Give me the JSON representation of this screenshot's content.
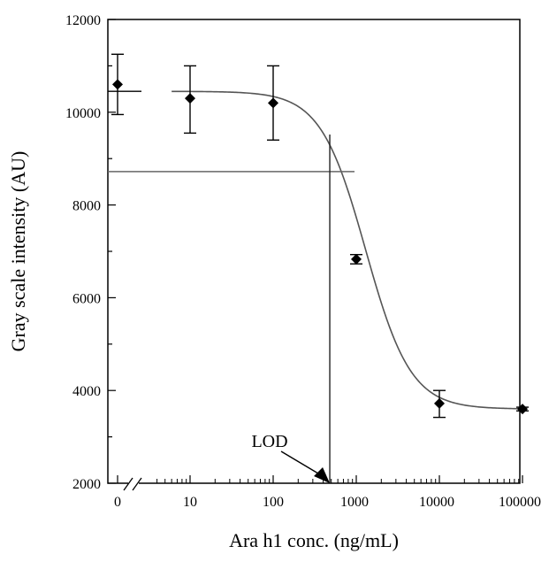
{
  "chart_data": {
    "type": "scatter",
    "title": "",
    "xlabel": "Ara h1 conc. (ng/mL)",
    "ylabel": "Gray scale intensity (AU)",
    "x_scale": "log",
    "x_axis_break": true,
    "x_tick_labels": [
      "0",
      "10",
      "100",
      "1000",
      "10000",
      "100000"
    ],
    "y_ticks": [
      2000,
      4000,
      6000,
      8000,
      10000,
      12000
    ],
    "ylim": [
      2000,
      12000
    ],
    "grid": false,
    "legend": "none",
    "points": [
      {
        "x": 0,
        "y": 10600,
        "err_low": 9950,
        "err_high": 11250
      },
      {
        "x": 10,
        "y": 10300,
        "err_low": 9550,
        "err_high": 11000
      },
      {
        "x": 100,
        "y": 10200,
        "err_low": 9400,
        "err_high": 11000
      },
      {
        "x": 1000,
        "y": 6830,
        "err_low": 6730,
        "err_high": 6930
      },
      {
        "x": 10000,
        "y": 3720,
        "err_low": 3420,
        "err_high": 4000
      },
      {
        "x": 100000,
        "y": 3600,
        "err_low": 3560,
        "err_high": 3640
      }
    ],
    "fit_curve": {
      "top": 10450,
      "bottom": 3600,
      "ic50": 1300,
      "hill": 1.6
    },
    "threshold": {
      "y": 8720,
      "lod_x": 480
    },
    "annotation": "LOD"
  }
}
